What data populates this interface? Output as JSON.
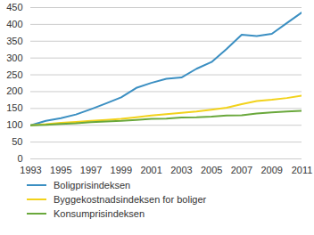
{
  "chart_data": {
    "type": "line",
    "x": [
      1993,
      1994,
      1995,
      1996,
      1997,
      1998,
      1999,
      2000,
      2001,
      2002,
      2003,
      2004,
      2005,
      2006,
      2007,
      2008,
      2009,
      2010,
      2011
    ],
    "series": [
      {
        "name": "Boligprisindeksen",
        "color": "#3b8fc2",
        "values": [
          100,
          113,
          121,
          132,
          148,
          165,
          183,
          211,
          226,
          238,
          242,
          268,
          288,
          327,
          369,
          365,
          372,
          404,
          436
        ]
      },
      {
        "name": "Byggekostnadsindeksen for boliger",
        "color": "#f2d21b",
        "values": [
          100,
          103,
          107,
          110,
          113,
          116,
          119,
          124,
          129,
          133,
          137,
          141,
          146,
          152,
          163,
          172,
          176,
          181,
          188
        ]
      },
      {
        "name": "Konsumprisindeksen",
        "color": "#6aa83c",
        "values": [
          100,
          101,
          104,
          106,
          109,
          111,
          113,
          116,
          119,
          120,
          123,
          124,
          126,
          129,
          130,
          135,
          138,
          141,
          143
        ]
      }
    ],
    "xlim": [
      1993,
      2011
    ],
    "xticks": [
      1993,
      1995,
      1997,
      1999,
      2001,
      2003,
      2005,
      2007,
      2009,
      2011
    ],
    "ylim": [
      0,
      450
    ],
    "yticks": [
      0,
      50,
      100,
      150,
      200,
      250,
      300,
      350,
      400,
      450
    ],
    "grid": true,
    "legend": "bottom"
  }
}
